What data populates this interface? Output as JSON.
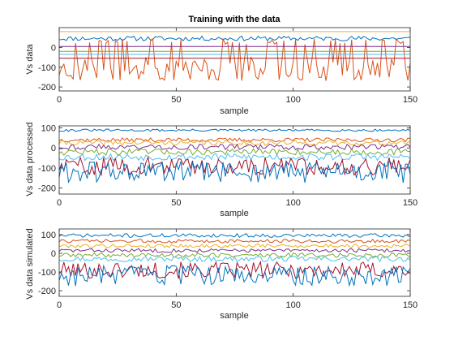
{
  "figure": {
    "background": "#ffffff",
    "axis_color": "#262626",
    "palette": [
      "#0072BD",
      "#D95319",
      "#EDB120",
      "#7E2F8E",
      "#77AC30",
      "#4DBEEE",
      "#A2142F"
    ]
  },
  "chart_data": [
    {
      "type": "line",
      "title": "Training with the data",
      "xlabel": "sample",
      "ylabel": "Vs data",
      "xlim": [
        0,
        150
      ],
      "ylim": [
        -220,
        100
      ],
      "xticks": [
        0,
        50,
        100,
        150
      ],
      "yticks": [
        -200,
        -100,
        0
      ],
      "grid": false,
      "legend": "none",
      "series": [
        {
          "kind": "noisy",
          "mean": 45,
          "amp": 12,
          "seed": 11
        },
        {
          "kind": "noisy",
          "mean": -110,
          "amp": 60,
          "spikes": 0.25,
          "spike_to": 30,
          "seed": 23
        },
        {
          "kind": "const",
          "value": 80
        },
        {
          "kind": "const",
          "value": 5
        },
        {
          "kind": "const",
          "value": -20
        },
        {
          "kind": "const",
          "value": -35
        },
        {
          "kind": "const",
          "value": -55
        }
      ]
    },
    {
      "type": "line",
      "title": "",
      "xlabel": "sample",
      "ylabel": "Vs data processed",
      "xlim": [
        0,
        150
      ],
      "ylim": [
        -230,
        110
      ],
      "xticks": [
        0,
        50,
        100,
        150
      ],
      "yticks": [
        -200,
        -100,
        0,
        100
      ],
      "grid": false,
      "legend": "none",
      "series": [
        {
          "kind": "noisy",
          "mean": 88,
          "amp": 6,
          "seed": 31
        },
        {
          "kind": "noisy",
          "mean": 40,
          "amp": 10,
          "seed": 37
        },
        {
          "kind": "noisy",
          "mean": 25,
          "amp": 12,
          "seed": 41
        },
        {
          "kind": "noisy",
          "mean": 5,
          "amp": 14,
          "seed": 43
        },
        {
          "kind": "noisy",
          "mean": -20,
          "amp": 16,
          "seed": 47
        },
        {
          "kind": "noisy",
          "mean": -45,
          "amp": 18,
          "seed": 53
        },
        {
          "kind": "noisy",
          "mean": -90,
          "amp": 45,
          "seed": 59
        },
        {
          "kind": "noisy",
          "mean": -120,
          "amp": 55,
          "seed": 61
        }
      ]
    },
    {
      "type": "line",
      "title": "",
      "xlabel": "sample",
      "ylabel": "Vs data simulated",
      "xlim": [
        0,
        150
      ],
      "ylim": [
        -230,
        130
      ],
      "xticks": [
        0,
        50,
        100,
        150
      ],
      "yticks": [
        -200,
        -100,
        0,
        100
      ],
      "grid": false,
      "legend": "none",
      "series": [
        {
          "kind": "noisy",
          "mean": 95,
          "amp": 10,
          "seed": 71
        },
        {
          "kind": "noisy",
          "mean": 65,
          "amp": 10,
          "seed": 73
        },
        {
          "kind": "noisy",
          "mean": 40,
          "amp": 10,
          "seed": 79
        },
        {
          "kind": "noisy",
          "mean": 15,
          "amp": 10,
          "seed": 83
        },
        {
          "kind": "noisy",
          "mean": -10,
          "amp": 12,
          "seed": 89
        },
        {
          "kind": "noisy",
          "mean": -30,
          "amp": 14,
          "seed": 97
        },
        {
          "kind": "noisy",
          "mean": -90,
          "amp": 45,
          "seed": 101
        },
        {
          "kind": "noisy",
          "mean": -120,
          "amp": 55,
          "seed": 103
        }
      ]
    }
  ]
}
